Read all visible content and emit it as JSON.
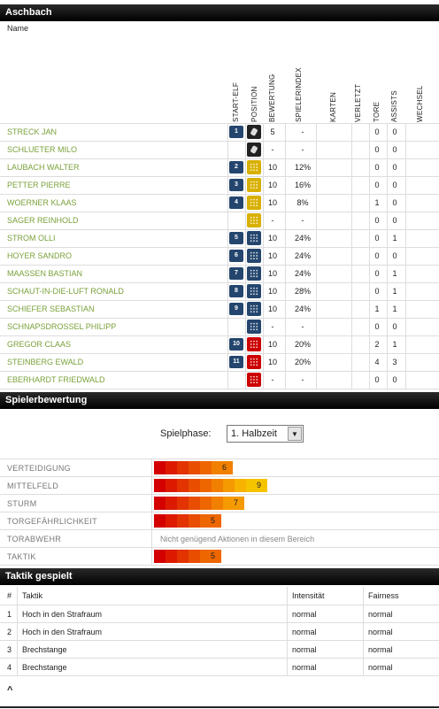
{
  "team": {
    "title": "Aschbach",
    "name_label": "Name"
  },
  "columns": [
    "START-ELF",
    "POSITION",
    "BEWERTUNG",
    "SPIELERINDEX",
    "KARTEN",
    "VERLETZT",
    "TORE",
    "ASSISTS",
    "WECHSEL"
  ],
  "players": [
    {
      "name": "STRECK JAN",
      "shirt": "1",
      "pos": "gk",
      "rating": "5",
      "index": "-",
      "goals": "0",
      "assists": "0"
    },
    {
      "name": "SCHLUETER MILO",
      "shirt": "",
      "pos": "gk",
      "rating": "-",
      "index": "-",
      "goals": "0",
      "assists": "0"
    },
    {
      "name": "LAUBACH WALTER",
      "shirt": "2",
      "pos": "def",
      "rating": "10",
      "index": "12%",
      "goals": "0",
      "assists": "0"
    },
    {
      "name": "PETTER PIERRE",
      "shirt": "3",
      "pos": "def",
      "rating": "10",
      "index": "16%",
      "goals": "0",
      "assists": "0"
    },
    {
      "name": "WOERNER KLAAS",
      "shirt": "4",
      "pos": "def",
      "rating": "10",
      "index": "8%",
      "goals": "1",
      "assists": "0"
    },
    {
      "name": "SAGER REINHOLD",
      "shirt": "",
      "pos": "def",
      "rating": "-",
      "index": "-",
      "goals": "0",
      "assists": "0"
    },
    {
      "name": "STROM OLLI",
      "shirt": "5",
      "pos": "mid",
      "rating": "10",
      "index": "24%",
      "goals": "0",
      "assists": "1"
    },
    {
      "name": "HOYER SANDRO",
      "shirt": "6",
      "pos": "mid",
      "rating": "10",
      "index": "24%",
      "goals": "0",
      "assists": "0"
    },
    {
      "name": "MAASSEN BASTIAN",
      "shirt": "7",
      "pos": "mid",
      "rating": "10",
      "index": "24%",
      "goals": "0",
      "assists": "1"
    },
    {
      "name": "SCHAUT-IN-DIE-LUFT RONALD",
      "shirt": "8",
      "pos": "mid",
      "rating": "10",
      "index": "28%",
      "goals": "0",
      "assists": "1"
    },
    {
      "name": "SCHIEFER SEBASTIAN",
      "shirt": "9",
      "pos": "mid",
      "rating": "10",
      "index": "24%",
      "goals": "1",
      "assists": "1"
    },
    {
      "name": "SCHNAPSDROSSEL PHILIPP",
      "shirt": "",
      "pos": "mid",
      "rating": "-",
      "index": "-",
      "goals": "0",
      "assists": "0"
    },
    {
      "name": "GREGOR CLAAS",
      "shirt": "10",
      "pos": "fwd",
      "rating": "10",
      "index": "20%",
      "goals": "2",
      "assists": "1"
    },
    {
      "name": "STEINBERG EWALD",
      "shirt": "11",
      "pos": "fwd",
      "rating": "10",
      "index": "20%",
      "goals": "4",
      "assists": "3"
    },
    {
      "name": "EBERHARDT FRIEDWALD",
      "shirt": "",
      "pos": "fwd",
      "rating": "-",
      "index": "-",
      "goals": "0",
      "assists": "0"
    }
  ],
  "rating_section": {
    "title": "Spielerbewertung",
    "phase_label": "Spielphase:",
    "phase_value": "1. Halbzeit",
    "rows": [
      {
        "label": "VERTEIDIGUNG",
        "value": 6
      },
      {
        "label": "MITTELFELD",
        "value": 9
      },
      {
        "label": "STURM",
        "value": 7
      },
      {
        "label": "TORGEFÄHRLICHKEIT",
        "value": 5
      },
      {
        "label": "TORABWEHR",
        "value": null,
        "note": "Nicht genügend Aktionen in diesem Bereich"
      },
      {
        "label": "TAKTIK",
        "value": 5
      }
    ],
    "bar_colors": [
      "#d40000",
      "#dd1a00",
      "#e23300",
      "#e84d00",
      "#ee6600",
      "#f28000",
      "#f59a00",
      "#f8b300",
      "#f5c400"
    ]
  },
  "tactics": {
    "title": "Taktik gespielt",
    "headers": {
      "num": "#",
      "taktik": "Taktik",
      "intensity": "Intensität",
      "fairness": "Fairness"
    },
    "rows": [
      {
        "num": "1",
        "taktik": "Hoch in den Strafraum",
        "intensity": "normal",
        "fairness": "normal"
      },
      {
        "num": "2",
        "taktik": "Hoch in den Strafraum",
        "intensity": "normal",
        "fairness": "normal"
      },
      {
        "num": "3",
        "taktik": "Brechstange",
        "intensity": "normal",
        "fairness": "normal"
      },
      {
        "num": "4",
        "taktik": "Brechstange",
        "intensity": "normal",
        "fairness": "normal"
      }
    ]
  },
  "footer": {
    "up_arrow": "^"
  }
}
